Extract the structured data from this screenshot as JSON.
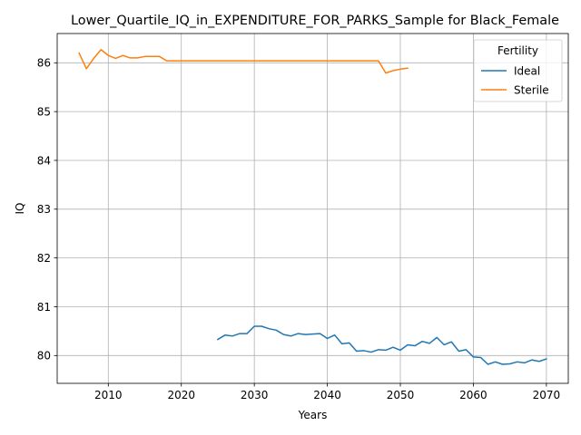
{
  "chart_data": {
    "type": "line",
    "title": "Lower_Quartile_IQ_in_EXPENDITURE_FOR_PARKS_Sample for Black_Female",
    "xlabel": "Years",
    "ylabel": "IQ",
    "xlim": [
      2003,
      2073
    ],
    "ylim": [
      79.43,
      86.6
    ],
    "xticks": [
      2010,
      2020,
      2030,
      2040,
      2050,
      2060,
      2070
    ],
    "yticks": [
      80,
      81,
      82,
      83,
      84,
      85,
      86
    ],
    "grid": true,
    "legend": {
      "title": "Fertility",
      "placement": "top-right"
    },
    "series": [
      {
        "name": "Ideal",
        "color": "#1f77b4",
        "x": [
          2025,
          2026,
          2027,
          2028,
          2029,
          2030,
          2031,
          2032,
          2033,
          2034,
          2035,
          2036,
          2037,
          2038,
          2039,
          2040,
          2041,
          2042,
          2043,
          2044,
          2045,
          2046,
          2047,
          2048,
          2049,
          2050,
          2051,
          2052,
          2053,
          2054,
          2055,
          2056,
          2057,
          2058,
          2059,
          2060,
          2061,
          2062,
          2063,
          2064,
          2065,
          2066,
          2067,
          2068,
          2069,
          2070
        ],
        "y": [
          80.33,
          80.42,
          80.4,
          80.45,
          80.45,
          80.6,
          80.6,
          80.55,
          80.52,
          80.43,
          80.4,
          80.45,
          80.43,
          80.44,
          80.45,
          80.35,
          80.42,
          80.24,
          80.26,
          80.09,
          80.1,
          80.07,
          80.12,
          80.11,
          80.17,
          80.11,
          80.22,
          80.2,
          80.29,
          80.25,
          80.37,
          80.22,
          80.28,
          80.09,
          80.12,
          79.97,
          79.96,
          79.82,
          79.87,
          79.82,
          79.83,
          79.87,
          79.85,
          79.91,
          79.88,
          79.93
        ]
      },
      {
        "name": "Sterile",
        "color": "#ff7f0e",
        "x": [
          2006,
          2007,
          2008,
          2009,
          2010,
          2011,
          2012,
          2013,
          2014,
          2015,
          2016,
          2017,
          2018,
          2019,
          2020,
          2021,
          2022,
          2023,
          2024,
          2025,
          2026,
          2027,
          2028,
          2029,
          2030,
          2031,
          2032,
          2033,
          2034,
          2035,
          2036,
          2037,
          2038,
          2039,
          2040,
          2041,
          2042,
          2043,
          2044,
          2045,
          2046,
          2047,
          2048,
          2049,
          2050,
          2051
        ],
        "y": [
          86.2,
          85.88,
          86.09,
          86.27,
          86.15,
          86.09,
          86.15,
          86.1,
          86.1,
          86.13,
          86.13,
          86.13,
          86.04,
          86.04,
          86.04,
          86.04,
          86.04,
          86.04,
          86.04,
          86.04,
          86.04,
          86.04,
          86.04,
          86.04,
          86.04,
          86.04,
          86.04,
          86.04,
          86.04,
          86.04,
          86.04,
          86.04,
          86.04,
          86.04,
          86.04,
          86.04,
          86.04,
          86.04,
          86.04,
          86.04,
          86.04,
          86.04,
          85.79,
          85.84,
          85.87,
          85.89
        ]
      }
    ]
  }
}
